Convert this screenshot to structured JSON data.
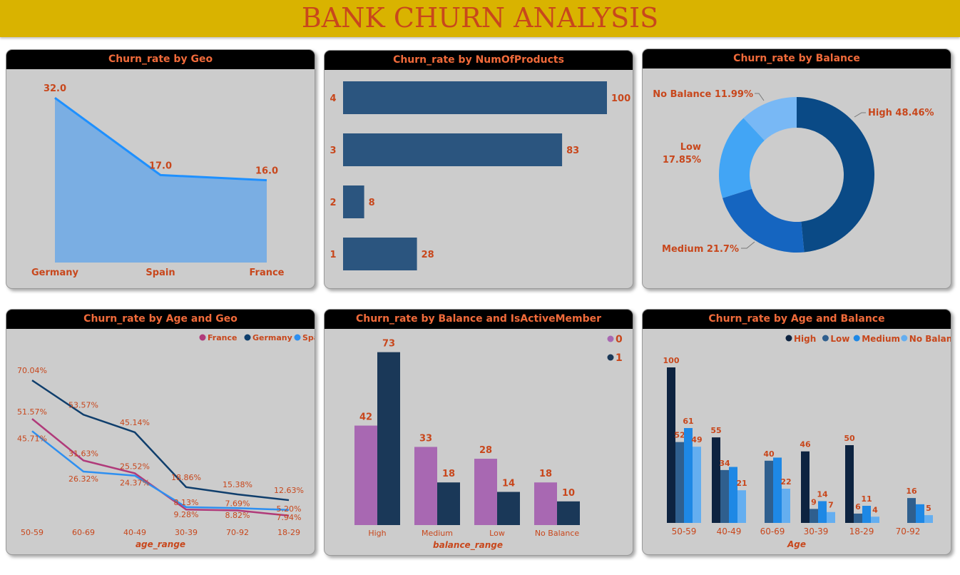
{
  "banner": {
    "title": "BANK CHURN ANALYSIS"
  },
  "colors": {
    "banner": "#d9b300",
    "title_text": "#c8471c",
    "panel_bg": "#cccccc",
    "label": "#c8471c"
  },
  "chart_data": [
    {
      "type": "area",
      "title": "Churn_rate by Geo",
      "categories": [
        "Germany",
        "Spain",
        "France"
      ],
      "values": [
        32.0,
        17.0,
        16.0
      ],
      "labels": [
        "32.0",
        "17.0",
        "16.0"
      ],
      "ylim": [
        0,
        33
      ],
      "colors": {
        "line": "#1e90ff",
        "fill": "#7aaee3"
      }
    },
    {
      "type": "bar",
      "orientation": "horizontal",
      "title": "Churn_rate by NumOfProducts",
      "categories": [
        "4",
        "3",
        "2",
        "1"
      ],
      "values": [
        100,
        83,
        8,
        28
      ],
      "xlim": [
        0,
        100
      ],
      "colors": {
        "bar": "#2b557f"
      }
    },
    {
      "type": "pie",
      "donut": true,
      "title": "Churn_rate by Balance",
      "slices": [
        {
          "label": "High",
          "value": 48.46,
          "text": "High 48.46%",
          "color": "#0a4a86"
        },
        {
          "label": "Medium",
          "value": 21.7,
          "text": "Medium 21.7%",
          "color": "#1565c0"
        },
        {
          "label": "Low",
          "value": 17.85,
          "text_lines": [
            "Low",
            "17.85%"
          ],
          "color": "#42a5f5"
        },
        {
          "label": "No Balance",
          "value": 11.99,
          "text": "No Balance 11.99%",
          "color": "#78b8f5"
        }
      ]
    },
    {
      "type": "line",
      "title": "Churn_rate by Age and Geo",
      "xlabel": "age_range",
      "categories": [
        "50-59",
        "60-69",
        "40-49",
        "30-39",
        "70-92",
        "18-29"
      ],
      "ylim": [
        0,
        80
      ],
      "legend_position": "top-right",
      "series": [
        {
          "name": "France",
          "color": "#b03a7a",
          "values": [
            51.57,
            31.63,
            25.52,
            8.13,
            7.69,
            5.2
          ],
          "labels": [
            "51.57%",
            "31.63%",
            "25.52%",
            "8.13%",
            "7.69%",
            "5.20%"
          ]
        },
        {
          "name": "Germany",
          "color": "#0f3e6c",
          "values": [
            70.04,
            53.57,
            45.14,
            18.86,
            15.38,
            12.63
          ],
          "labels": [
            "70.04%",
            "53.57%",
            "45.14%",
            "18.86%",
            "15.38%",
            "12.63%"
          ]
        },
        {
          "name": "Spain",
          "color": "#2e8ff0",
          "values": [
            45.71,
            26.32,
            24.37,
            9.28,
            8.82,
            7.94
          ],
          "labels": [
            "45.71%",
            "26.32%",
            "24.37%",
            "9.28%",
            "8.82%",
            "7.94%"
          ]
        }
      ]
    },
    {
      "type": "bar",
      "title": "Churn_rate by Balance and IsActiveMember",
      "xlabel": "balance_range",
      "categories": [
        "High",
        "Medium",
        "Low",
        "No Balance"
      ],
      "ylim": [
        0,
        78
      ],
      "legend_position": "right",
      "series": [
        {
          "name": "0",
          "color": "#a868b2",
          "values": [
            42,
            33,
            28,
            18
          ]
        },
        {
          "name": "1",
          "color": "#1a3858",
          "values": [
            73,
            18,
            14,
            10
          ]
        }
      ]
    },
    {
      "type": "bar",
      "title": "Churn_rate by Age and Balance",
      "xlabel": "Age",
      "categories": [
        "50-59",
        "40-49",
        "60-69",
        "30-39",
        "18-29",
        "70-92"
      ],
      "ylim": [
        0,
        103
      ],
      "legend_position": "top-right",
      "series": [
        {
          "name": "High",
          "color": "#0d2340",
          "values": [
            100,
            55,
            null,
            46,
            50,
            null
          ]
        },
        {
          "name": "Low",
          "color": "#2f5f8e",
          "values": [
            52,
            34,
            40,
            9,
            6,
            16
          ]
        },
        {
          "name": "Medium",
          "color": "#1e88e5",
          "values": [
            61,
            36,
            42,
            14,
            11,
            12
          ]
        },
        {
          "name": "No Balance",
          "color": "#64aef0",
          "values": [
            49,
            21,
            22,
            7,
            4,
            5
          ]
        }
      ],
      "labeled": [
        [
          true,
          true,
          true,
          true
        ],
        [
          true,
          true,
          false,
          true
        ],
        [
          false,
          true,
          false,
          true
        ],
        [
          true,
          true,
          true,
          true
        ],
        [
          true,
          true,
          true,
          true
        ],
        [
          false,
          true,
          false,
          true
        ]
      ]
    }
  ]
}
